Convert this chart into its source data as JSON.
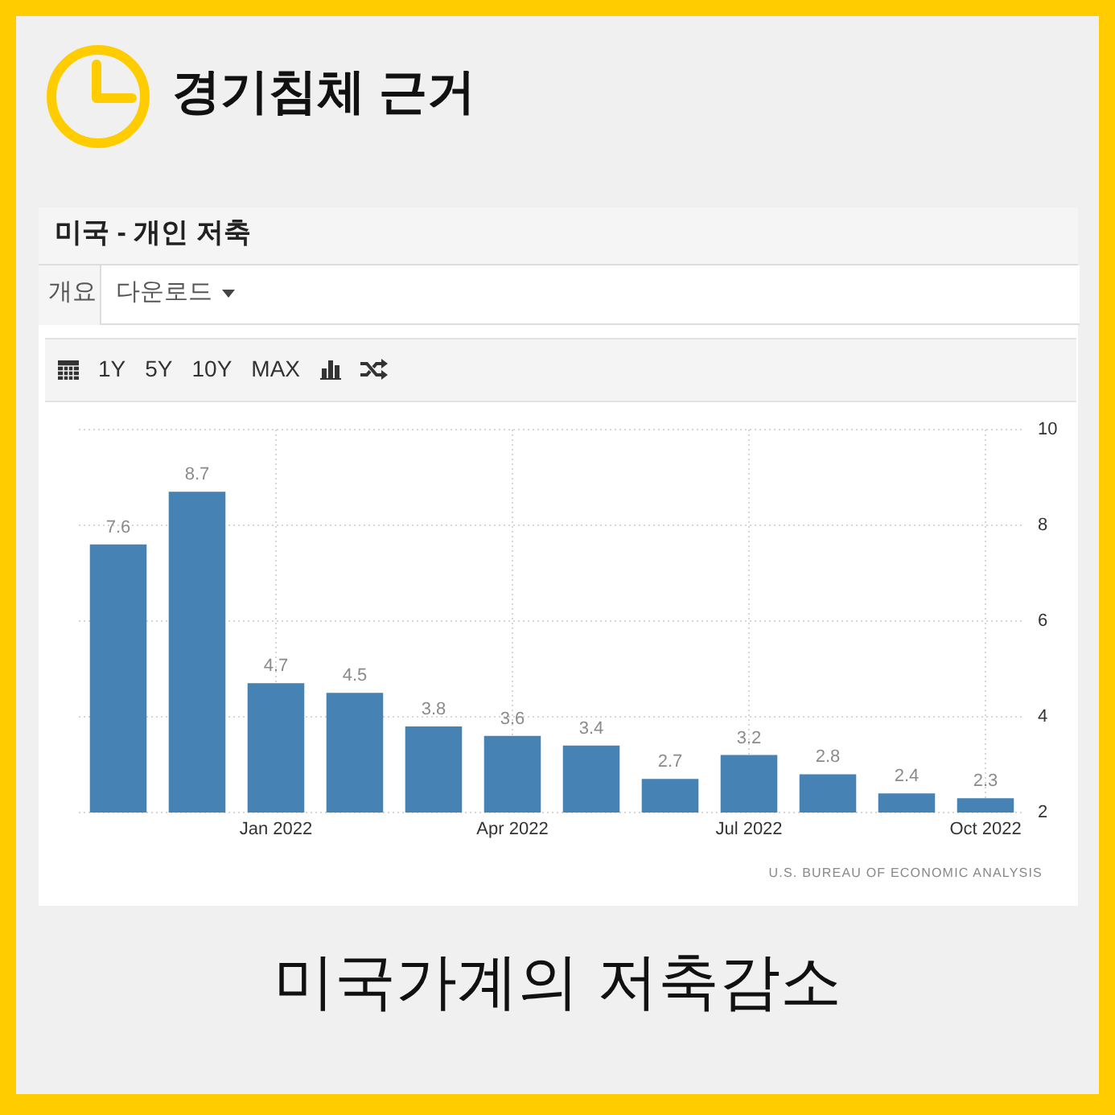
{
  "chart_data": {
    "type": "bar",
    "title": "경기침체 근거",
    "subtitle": "미국 - 개인 저축",
    "categories": [
      null,
      null,
      "Jan 2022",
      null,
      null,
      "Apr 2022",
      null,
      null,
      "Jul 2022",
      null,
      null,
      "Oct 2022"
    ],
    "values": [
      7.6,
      8.7,
      4.7,
      4.5,
      3.8,
      3.6,
      3.4,
      2.7,
      3.2,
      2.8,
      2.4,
      2.3
    ],
    "color": "#4682b4",
    "ylim": [
      2,
      10
    ],
    "yticks": [
      2,
      4,
      6,
      8,
      10
    ],
    "grid": true,
    "data_labels": true,
    "annotations": [
      "개요",
      "다운로드",
      "1Y",
      "5Y",
      "10Y",
      "MAX",
      "U.S. BUREAU OF ECONOMIC ANALYSIS",
      "미국가계의 저축감소"
    ]
  }
}
